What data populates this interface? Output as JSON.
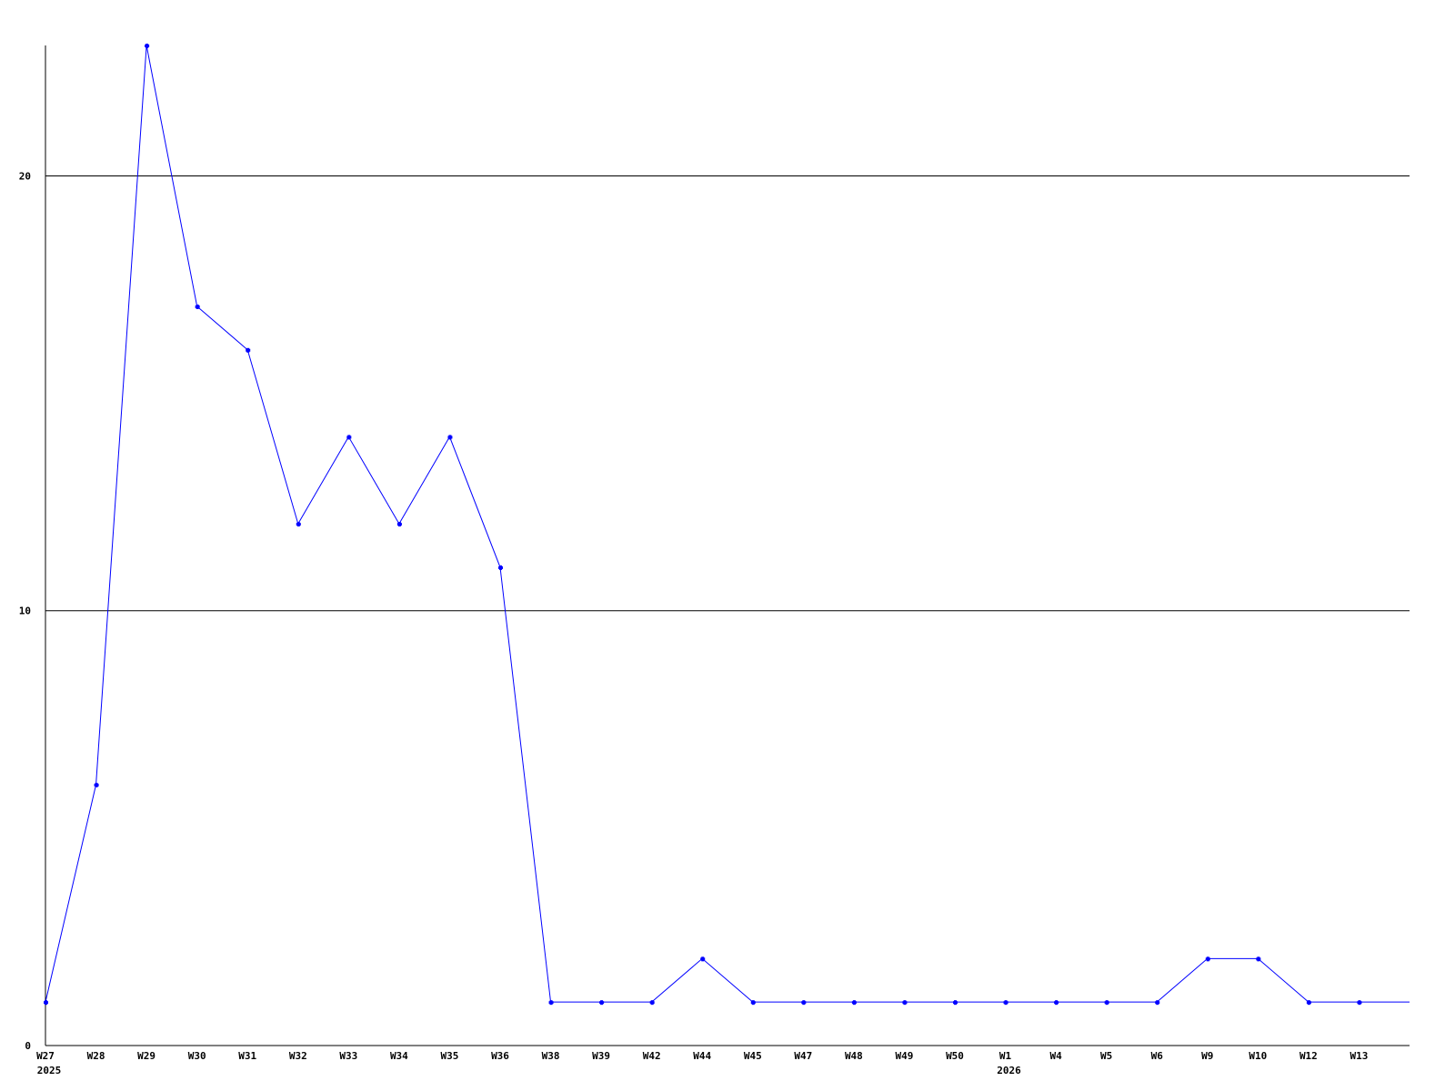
{
  "chart_data": {
    "type": "line",
    "title": "",
    "xlabel": "",
    "ylabel": "",
    "ylim": [
      0,
      23
    ],
    "y_ticks": [
      0,
      10,
      20
    ],
    "grid": "horizontal lines at 10 and 20",
    "categories": [
      "W27",
      "W28",
      "W29",
      "W30",
      "W31",
      "W32",
      "W33",
      "W34",
      "W35",
      "W36",
      "W38",
      "W39",
      "W42",
      "W44",
      "W45",
      "W47",
      "W48",
      "W49",
      "W50",
      "W1",
      "W4",
      "W5",
      "W6",
      "W9",
      "W10",
      "W12",
      "W13"
    ],
    "year_labels": [
      {
        "at": "W27",
        "label": "2025"
      },
      {
        "at": "W1",
        "label": "2026"
      }
    ],
    "series": [
      {
        "color": "#0000ff",
        "values": [
          1,
          6,
          23,
          17,
          16,
          12,
          14,
          12,
          14,
          11,
          1,
          1,
          1,
          2,
          1,
          1,
          1,
          1,
          1,
          1,
          1,
          1,
          1,
          2,
          2,
          1,
          1
        ],
        "continues_right_at": 1
      }
    ],
    "axis_color": "#000000"
  }
}
